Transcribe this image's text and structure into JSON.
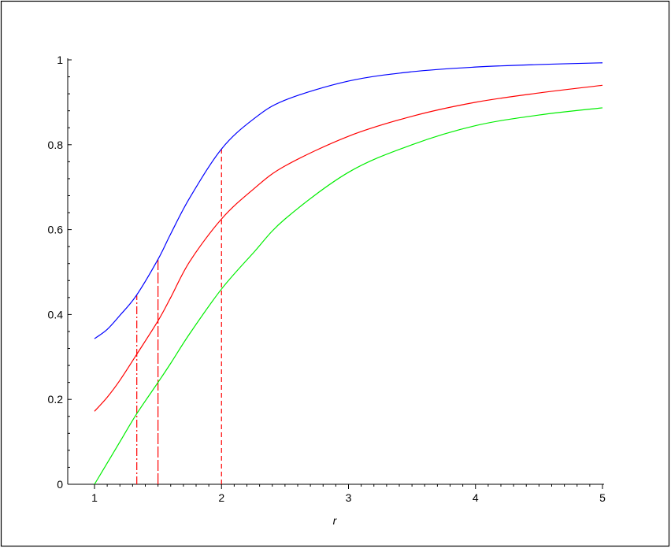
{
  "chart_data": {
    "type": "line",
    "title": "",
    "xlabel": "r",
    "ylabel": "",
    "xlim": [
      0.8,
      5
    ],
    "ylim": [
      0,
      1
    ],
    "x_ticks": [
      {
        "value": 1,
        "label": "1"
      },
      {
        "value": 2,
        "label": "2"
      },
      {
        "value": 3,
        "label": "3"
      },
      {
        "value": 4,
        "label": "4"
      },
      {
        "value": 5,
        "label": "5"
      }
    ],
    "y_ticks": [
      {
        "value": 0,
        "label": "0"
      },
      {
        "value": 0.2,
        "label": "0.2"
      },
      {
        "value": 0.4,
        "label": "0.4"
      },
      {
        "value": 0.6,
        "label": "0.6"
      },
      {
        "value": 0.8,
        "label": "0.8"
      },
      {
        "value": 1,
        "label": "1"
      }
    ],
    "grid": false,
    "series": [
      {
        "color": "#0000ff",
        "x": [
          1,
          1.1,
          1.2,
          1.33,
          1.5,
          1.6,
          1.75,
          2,
          2.25,
          2.5,
          3,
          3.5,
          4,
          4.5,
          5
        ],
        "y": [
          0.343,
          0.365,
          0.398,
          0.445,
          0.53,
          0.59,
          0.675,
          0.79,
          0.86,
          0.905,
          0.95,
          0.972,
          0.983,
          0.989,
          0.993
        ]
      },
      {
        "color": "#ff0000",
        "x": [
          1,
          1.1,
          1.2,
          1.33,
          1.5,
          1.6,
          1.75,
          2,
          2.25,
          2.5,
          3,
          3.5,
          4,
          4.5,
          5
        ],
        "y": [
          0.172,
          0.205,
          0.245,
          0.305,
          0.385,
          0.44,
          0.525,
          0.625,
          0.695,
          0.75,
          0.82,
          0.867,
          0.9,
          0.922,
          0.94
        ]
      },
      {
        "color": "#00ee00",
        "x": [
          1,
          1.1,
          1.2,
          1.33,
          1.5,
          1.6,
          1.75,
          2,
          2.25,
          2.5,
          3,
          3.5,
          4,
          4.5,
          5
        ],
        "y": [
          0.0,
          0.05,
          0.1,
          0.165,
          0.24,
          0.285,
          0.355,
          0.46,
          0.545,
          0.625,
          0.735,
          0.8,
          0.845,
          0.87,
          0.887
        ]
      }
    ],
    "vertical_lines": [
      {
        "x": 1.333,
        "y_top": 0.445,
        "style": "dash-dot",
        "color": "#ff0000"
      },
      {
        "x": 1.5,
        "y_top": 0.53,
        "style": "long-dash",
        "color": "#ff0000"
      },
      {
        "x": 2,
        "y_top": 0.79,
        "style": "dash",
        "color": "#ff0000"
      }
    ]
  }
}
